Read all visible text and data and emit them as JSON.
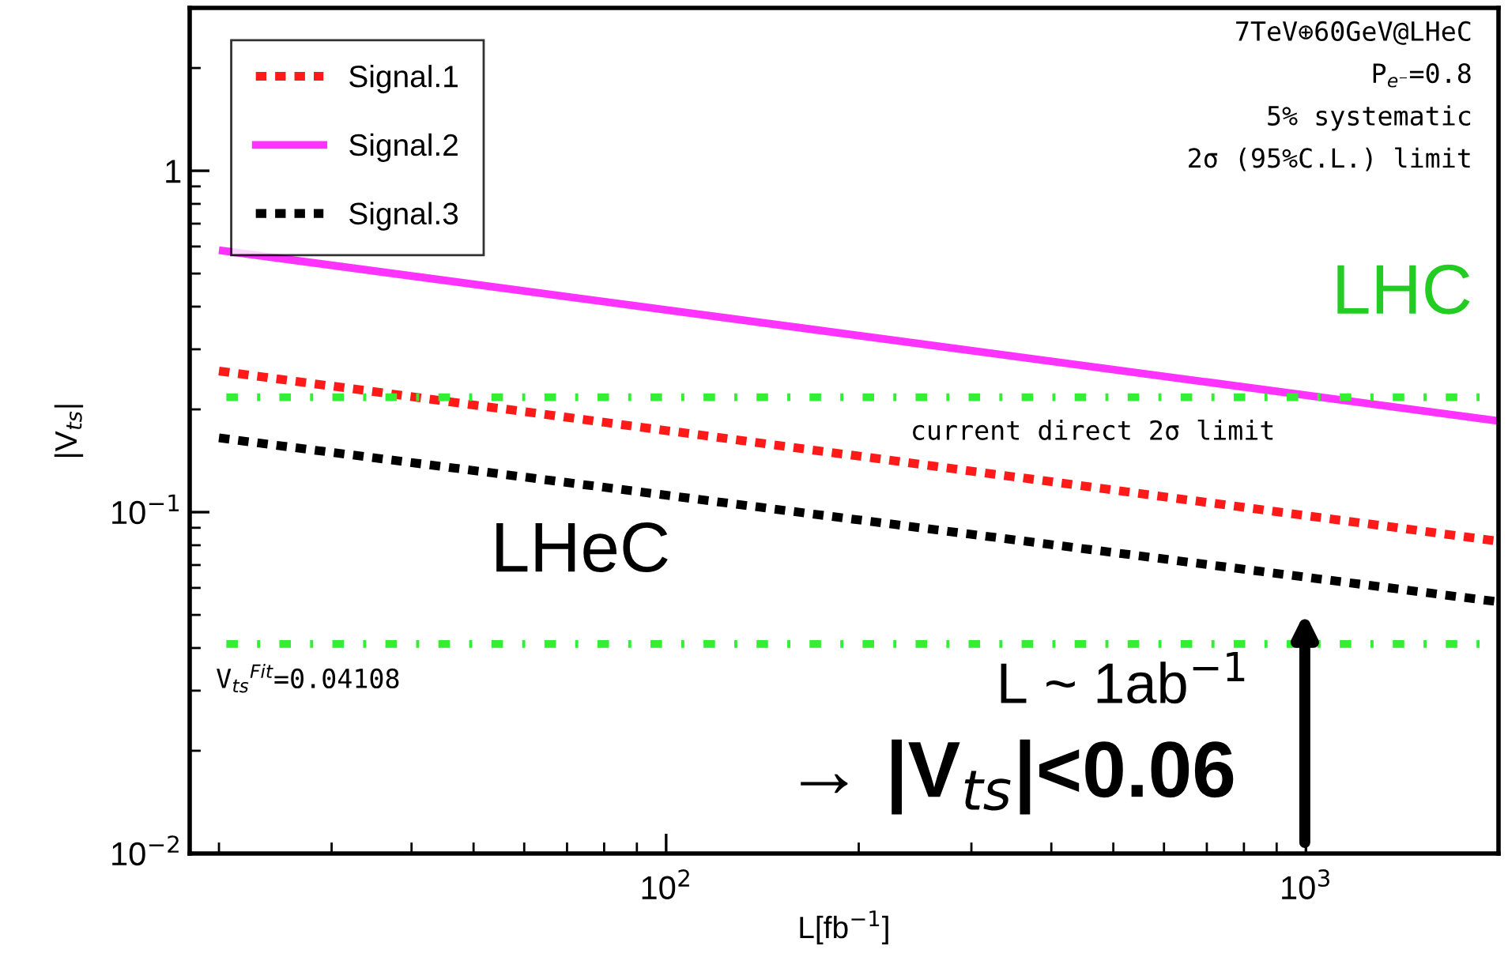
{
  "chart_data": {
    "type": "line",
    "log": "xy",
    "xlabel": "L[fb$^{−1}$]",
    "ylabel": "|V$_{ts}$|",
    "xlim": [
      18,
      2000
    ],
    "ylim": [
      0.01,
      3
    ],
    "xticks": [
      {
        "value": 100,
        "label": "10$^{2}$"
      },
      {
        "value": 1000,
        "label": "10$^{3}$"
      }
    ],
    "yticks": [
      {
        "value": 0.01,
        "label": "10$^{−2}$"
      },
      {
        "value": 0.1,
        "label": "10$^{−1}$"
      },
      1
    ],
    "grid": false,
    "x": [
      20,
      2000
    ],
    "legend": "top left",
    "marker": "none",
    "series": [
      {
        "name": "Signal.1",
        "color": "#ff1a1a",
        "line_style": "dotted",
        "values": [
          0.259,
          0.0822
        ]
      },
      {
        "name": "Signal.2",
        "color": "#ff33ff",
        "line_style": "solid",
        "values": [
          0.585,
          0.185
        ]
      },
      {
        "name": "Signal.3",
        "color": "#000000",
        "line_style": "dotted",
        "values": [
          0.165,
          0.0546
        ]
      }
    ],
    "ref_lines": [
      {
        "axis": "y",
        "value": 0.217,
        "label": "current direct 2σ limit",
        "color": "#33ee33",
        "line_style": "dashdot"
      },
      {
        "axis": "y",
        "value": 0.04108,
        "label": "V$_{ts}$$^{Fit}$=0.04108",
        "color": "#33ee33",
        "line_style": "dashdot"
      }
    ],
    "annotations": [
      "7TeV⊕60GeV@LHeC",
      "P$_{e⁻}$=0.8",
      "5% systematic",
      "2σ (95%C.L.) limit",
      "LHC",
      "LHeC",
      "L ~ 1ab$^{−1}$",
      "→ |V$_{ts}$|<0.06"
    ]
  }
}
